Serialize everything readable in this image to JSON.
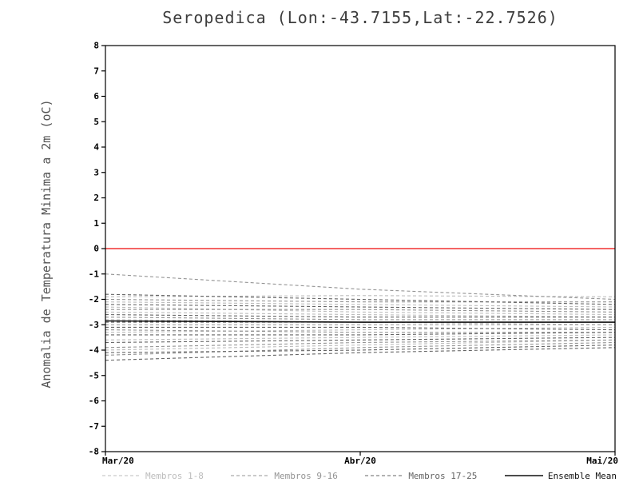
{
  "title": "Seropedica (Lon:-43.7155,Lat:-22.7526)",
  "ylabel": "Anomalia de Temperatura Minima a 2m (oC)",
  "colors": {
    "zero_line": "#f03030",
    "axis": "#000000",
    "group_1_8": "#bcbcbc",
    "group_9_16": "#949494",
    "group_17_25": "#646464",
    "ensemble_mean": "#111111",
    "title_text": "#3d3d3d"
  },
  "legend": [
    {
      "label": "Membros 1-8",
      "style": "dashed",
      "color": "#bcbcbc"
    },
    {
      "label": "Membros 9-16",
      "style": "dashed",
      "color": "#949494"
    },
    {
      "label": "Membros 17-25",
      "style": "dashed",
      "color": "#646464"
    },
    {
      "label": "Ensemble Mean",
      "style": "solid",
      "color": "#111111"
    }
  ],
  "chart_data": {
    "type": "line",
    "categories": [
      "Mar/20",
      "Abr/20",
      "Mai/20"
    ],
    "ylim": [
      -8,
      8
    ],
    "ytick_step": 1,
    "zero_line": 0,
    "title": "Seropedica (Lon:-43.7155,Lat:-22.7526)",
    "xlabel": "",
    "ylabel": "Anomalia de Temperatura Minima a 2m (oC)",
    "series": [
      {
        "name": "Membro 1",
        "group": "group_1_8",
        "dashed": true,
        "values": [
          -1.9,
          -1.85,
          -1.9
        ]
      },
      {
        "name": "Membro 2",
        "group": "group_1_8",
        "dashed": true,
        "values": [
          -2.1,
          -2.2,
          -2.3
        ]
      },
      {
        "name": "Membro 3",
        "group": "group_1_8",
        "dashed": true,
        "values": [
          -2.3,
          -2.5,
          -2.6
        ]
      },
      {
        "name": "Membro 4",
        "group": "group_1_8",
        "dashed": true,
        "values": [
          -2.5,
          -2.6,
          -2.7
        ]
      },
      {
        "name": "Membro 5",
        "group": "group_1_8",
        "dashed": true,
        "values": [
          -2.8,
          -2.9,
          -3.0
        ]
      },
      {
        "name": "Membro 6",
        "group": "group_1_8",
        "dashed": true,
        "values": [
          -3.3,
          -3.2,
          -3.1
        ]
      },
      {
        "name": "Membro 7",
        "group": "group_1_8",
        "dashed": true,
        "values": [
          -3.6,
          -3.5,
          -3.4
        ]
      },
      {
        "name": "Membro 8",
        "group": "group_1_8",
        "dashed": true,
        "values": [
          -4.0,
          -3.8,
          -3.6
        ]
      },
      {
        "name": "Membro 9",
        "group": "group_9_16",
        "dashed": true,
        "values": [
          -1.0,
          -1.6,
          -2.0
        ]
      },
      {
        "name": "Membro 10",
        "group": "group_9_16",
        "dashed": true,
        "values": [
          -2.0,
          -2.1,
          -2.1
        ]
      },
      {
        "name": "Membro 11",
        "group": "group_9_16",
        "dashed": true,
        "values": [
          -2.4,
          -2.4,
          -2.5
        ]
      },
      {
        "name": "Membro 12",
        "group": "group_9_16",
        "dashed": true,
        "values": [
          -2.7,
          -2.8,
          -2.8
        ]
      },
      {
        "name": "Membro 13",
        "group": "group_9_16",
        "dashed": true,
        "values": [
          -3.0,
          -3.0,
          -3.0
        ]
      },
      {
        "name": "Membro 14",
        "group": "group_9_16",
        "dashed": true,
        "values": [
          -3.2,
          -3.3,
          -3.3
        ]
      },
      {
        "name": "Membro 15",
        "group": "group_9_16",
        "dashed": true,
        "values": [
          -3.9,
          -3.7,
          -3.6
        ]
      },
      {
        "name": "Membro 16",
        "group": "group_9_16",
        "dashed": true,
        "values": [
          -4.2,
          -3.9,
          -3.7
        ]
      },
      {
        "name": "Membro 17",
        "group": "group_17_25",
        "dashed": true,
        "values": [
          -1.8,
          -2.0,
          -2.2
        ]
      },
      {
        "name": "Membro 18",
        "group": "group_17_25",
        "dashed": true,
        "values": [
          -2.2,
          -2.3,
          -2.4
        ]
      },
      {
        "name": "Membro 19",
        "group": "group_17_25",
        "dashed": true,
        "values": [
          -2.6,
          -2.7,
          -2.7
        ]
      },
      {
        "name": "Membro 20",
        "group": "group_17_25",
        "dashed": true,
        "values": [
          -2.9,
          -2.9,
          -2.9
        ]
      },
      {
        "name": "Membro 21",
        "group": "group_17_25",
        "dashed": true,
        "values": [
          -3.1,
          -3.1,
          -3.2
        ]
      },
      {
        "name": "Membro 22",
        "group": "group_17_25",
        "dashed": true,
        "values": [
          -3.4,
          -3.4,
          -3.3
        ]
      },
      {
        "name": "Membro 23",
        "group": "group_17_25",
        "dashed": true,
        "values": [
          -3.7,
          -3.6,
          -3.5
        ]
      },
      {
        "name": "Membro 24",
        "group": "group_17_25",
        "dashed": true,
        "values": [
          -4.1,
          -4.0,
          -3.8
        ]
      },
      {
        "name": "Membro 25",
        "group": "group_17_25",
        "dashed": true,
        "values": [
          -4.4,
          -4.1,
          -3.9
        ]
      },
      {
        "name": "Ensemble Mean",
        "group": "ensemble_mean",
        "dashed": false,
        "values": [
          -2.85,
          -2.9,
          -2.9
        ]
      }
    ]
  }
}
